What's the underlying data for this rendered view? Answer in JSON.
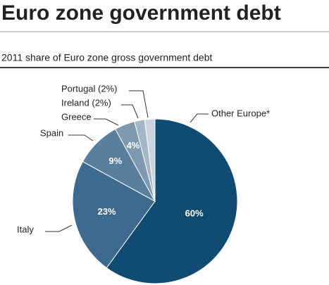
{
  "chart_data": {
    "type": "pie",
    "title": "Euro zone government debt",
    "subtitle": "2011 share of Euro zone gross government debt",
    "categories": [
      "Other Europe*",
      "Italy",
      "Spain",
      "Greece",
      "Ireland (2%)",
      "Portugal (2%)"
    ],
    "values": [
      60,
      23,
      9,
      4,
      2,
      2
    ],
    "value_labels": [
      "60%",
      "23%",
      "9%",
      "4%",
      null,
      null
    ],
    "colors": [
      "#104b74",
      "#3e6a8f",
      "#5a7e9d",
      "#7f99b1",
      "#a5b6c7",
      "#cbd5df"
    ]
  }
}
